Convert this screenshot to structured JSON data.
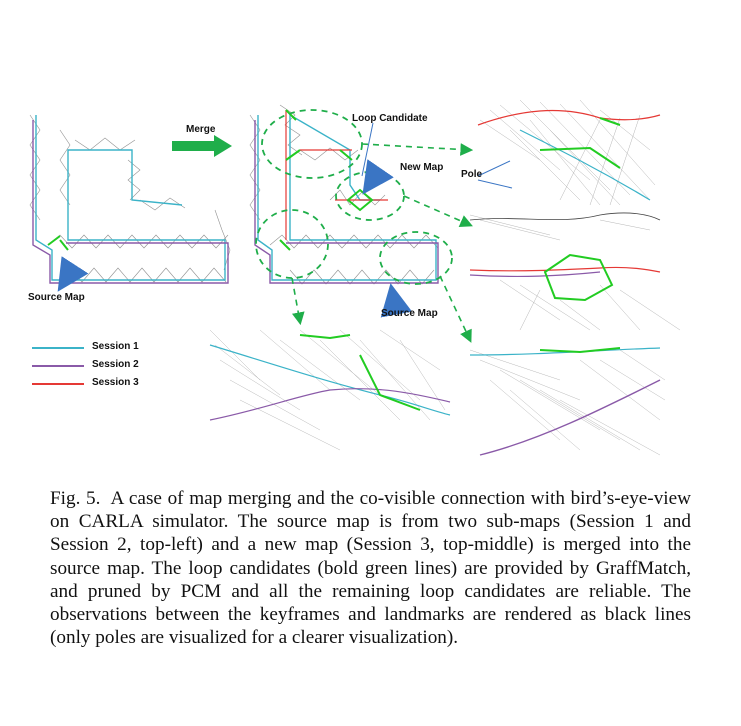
{
  "labels": {
    "merge": "Merge",
    "loop_candidate": "Loop Candidate",
    "new_map": "New Map",
    "pole": "Pole",
    "source_map_left": "Source Map",
    "source_map_middle": "Source Map"
  },
  "legend": [
    {
      "name": "Session 1",
      "color": "#3bb3c8"
    },
    {
      "name": "Session 2",
      "color": "#8a5aa8"
    },
    {
      "name": "Session 3",
      "color": "#e53935"
    }
  ],
  "colors": {
    "loop_candidate": "#22cc22",
    "observation": "#555555",
    "arrow_green": "#1fae4a",
    "arrow_blue": "#3a75c4"
  },
  "caption": {
    "number": "Fig. 5.",
    "text": "A case of map merging and the co-visible connection with bird’s-eye-view on CARLA simulator. The source map is from two sub-maps (Session 1 and Session 2, top-left) and a new map (Session 3, top-middle) is merged into the source map. The loop candidates (bold green lines) are provided by GraffMatch, and pruned by PCM and all the remaining loop candidates are reliable. The observations between the keyframes and landmarks are rendered as black lines (only poles are visualized for a clearer visualization)."
  }
}
